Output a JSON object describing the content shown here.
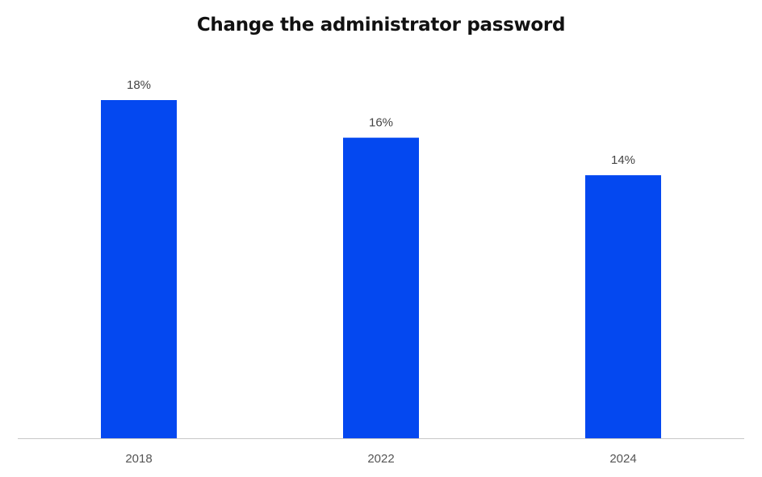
{
  "chart_data": {
    "type": "bar",
    "title": "Change the administrator password",
    "categories": [
      "2018",
      "2022",
      "2024"
    ],
    "values": [
      18,
      16,
      14
    ],
    "data_labels": [
      "18%",
      "16%",
      "14%"
    ],
    "xlabel": "",
    "ylabel": "",
    "ylim": [
      0,
      18
    ],
    "grid": false,
    "legend": "none",
    "bar_color": "#0448F0",
    "axis_color": "#C8C8C8"
  }
}
